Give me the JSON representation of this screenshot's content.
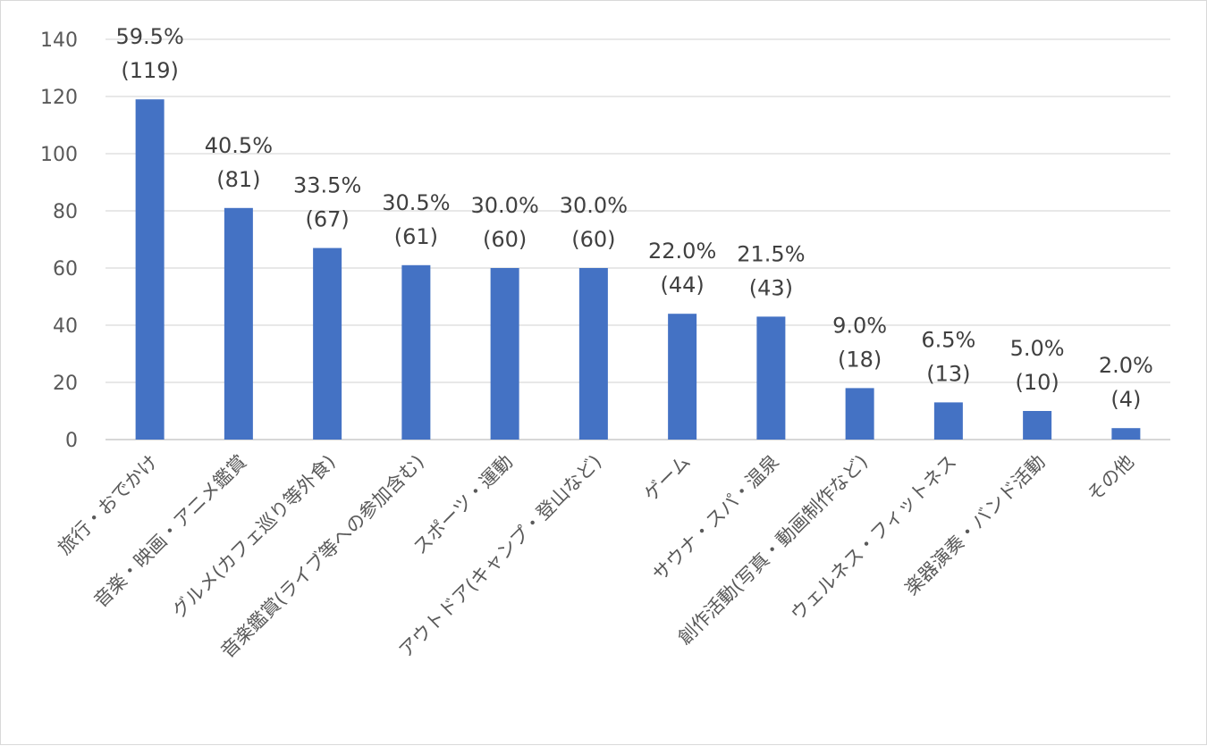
{
  "chart_data": {
    "type": "bar",
    "title": "",
    "xlabel": "",
    "ylabel": "",
    "ylim": [
      0,
      140
    ],
    "yticks": [
      0,
      20,
      40,
      60,
      80,
      100,
      120,
      140
    ],
    "grid": true,
    "bar_color": "#4472C4",
    "categories": [
      "旅行・おでかけ",
      "音楽・映画・アニメ鑑賞",
      "グルメ(カフェ巡り等外食)",
      "音楽鑑賞(ライブ等への参加含む)",
      "スポーツ・運動",
      "アウトドア(キャンプ・登山など)",
      "ゲーム",
      "サウナ・スパ・温泉",
      "創作活動(写真・動画制作など)",
      "ウェルネス・フィットネス",
      "楽器演奏・バンド活動",
      "その他"
    ],
    "values": [
      119,
      81,
      67,
      61,
      60,
      60,
      44,
      43,
      18,
      13,
      10,
      4
    ],
    "percent_labels": [
      "59.5%",
      "40.5%",
      "33.5%",
      "30.5%",
      "30.0%",
      "30.0%",
      "22.0%",
      "21.5%",
      "9.0%",
      "6.5%",
      "5.0%",
      "2.0%"
    ],
    "count_labels": [
      "(119)",
      "(81)",
      "(67)",
      "(61)",
      "(60)",
      "(60)",
      "(44)",
      "(43)",
      "(18)",
      "(13)",
      "(10)",
      "(4)"
    ]
  }
}
